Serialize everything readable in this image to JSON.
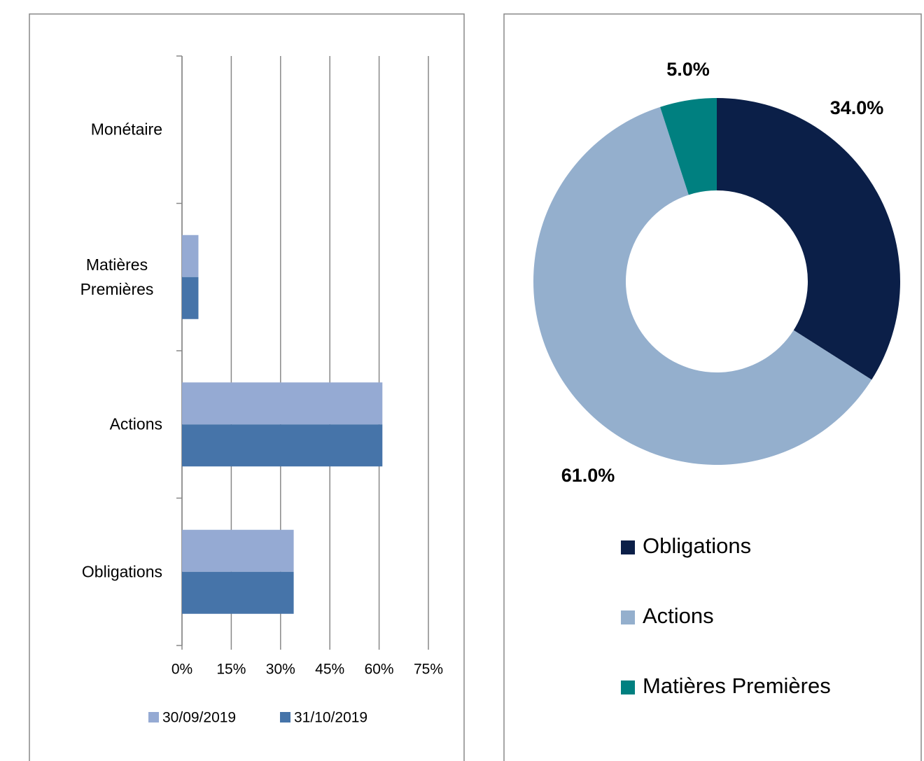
{
  "chart_data": [
    {
      "type": "bar",
      "orientation": "horizontal",
      "categories": [
        "Monétaire",
        "Matières Premières",
        "Actions",
        "Obligations"
      ],
      "series": [
        {
          "name": "30/09/2019",
          "color": "#95aad3",
          "values": [
            0,
            5,
            61,
            34
          ]
        },
        {
          "name": "31/10/2019",
          "color": "#4674a9",
          "values": [
            0,
            5,
            61,
            34
          ]
        }
      ],
      "xlim": [
        0,
        75
      ],
      "xticks": [
        {
          "value": 0,
          "label": "0%"
        },
        {
          "value": 15,
          "label": "15%"
        },
        {
          "value": 30,
          "label": "30%"
        },
        {
          "value": 45,
          "label": "45%"
        },
        {
          "value": 60,
          "label": "60%"
        },
        {
          "value": 75,
          "label": "75%"
        }
      ],
      "grid": true,
      "legend": "bottom"
    },
    {
      "type": "donut",
      "categories": [
        "Obligations",
        "Actions",
        "Matières Premières"
      ],
      "values": [
        34,
        61,
        5
      ],
      "value_labels": [
        "34.0%",
        "61.0%",
        "5.0%"
      ],
      "colors": [
        "#0b1f48",
        "#94afcd",
        "#008080"
      ],
      "legend": "bottom"
    }
  ]
}
